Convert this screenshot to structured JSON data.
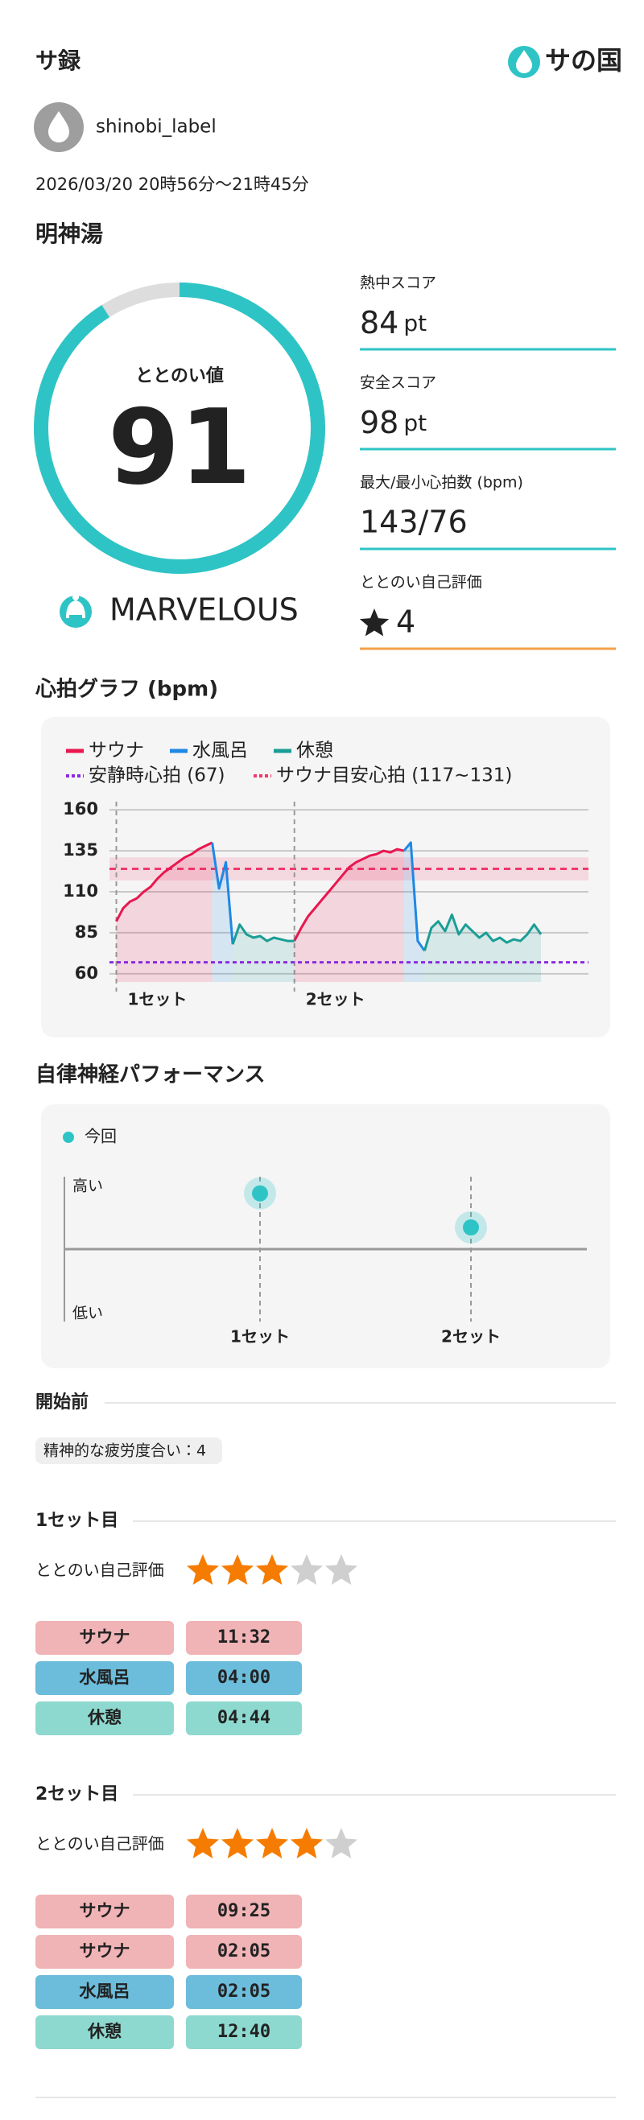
{
  "header": {
    "title": "サ録",
    "logo_text": "サの国"
  },
  "user": {
    "name": "shinobi_label"
  },
  "session": {
    "datetime": "2026/03/20 20時56分〜21時45分",
    "facility": "明神湯"
  },
  "totonoi": {
    "label": "ととのい値",
    "value": 91,
    "max": 100,
    "color": "#2ec4c6",
    "track_color": "#dddddd",
    "rank": "MARVELOUS"
  },
  "scores": [
    {
      "label": "熱中スコア",
      "value": 84,
      "unit": "pt",
      "color": "#2ec4c6"
    },
    {
      "label": "安全スコア",
      "value": 98,
      "unit": "pt",
      "color": "#2ec4c6"
    },
    {
      "label": "最大/最小心拍数 (bpm)",
      "value": "143/76",
      "color": "#2ec4c6"
    },
    {
      "label": "ととのい自己評価",
      "value": 4,
      "color": "#f5a04a"
    }
  ],
  "chart_data": [
    {
      "type": "line",
      "title": "心拍グラフ (bpm)",
      "categories": [
        null,
        "1セット",
        null,
        null,
        null,
        null,
        null,
        null,
        null,
        null,
        null,
        null,
        null,
        null,
        null,
        null,
        null,
        null,
        null,
        null,
        null,
        null,
        null,
        null,
        null,
        null,
        null,
        "2セット",
        null,
        null,
        null,
        null,
        null,
        null,
        null,
        null,
        null,
        null,
        null,
        null,
        null,
        null,
        null,
        null,
        null,
        null,
        null,
        null,
        null,
        null,
        null,
        null,
        null,
        null,
        null,
        null,
        null,
        null,
        null,
        null,
        null,
        null,
        null,
        null
      ],
      "series": [
        {
          "name": "サウナ",
          "color": "#e8174f",
          "values": [
            null,
            92,
            100,
            104,
            106,
            110,
            113,
            118,
            122,
            125,
            128,
            131,
            133,
            136,
            138,
            140,
            null,
            null,
            null,
            null,
            null,
            null,
            null,
            null,
            null,
            null,
            null,
            80,
            88,
            95,
            100,
            105,
            110,
            115,
            120,
            125,
            128,
            130,
            132,
            133,
            135,
            134,
            136,
            135,
            null,
            null,
            null,
            null,
            null,
            null,
            null,
            null,
            null,
            null,
            null,
            null,
            null,
            null,
            null,
            null,
            null,
            null,
            null,
            null
          ]
        },
        {
          "name": "水風呂",
          "color": "#1e88e5",
          "values": [
            null,
            null,
            null,
            null,
            null,
            null,
            null,
            null,
            null,
            null,
            null,
            null,
            null,
            null,
            null,
            140,
            112,
            128,
            78,
            null,
            null,
            null,
            null,
            null,
            null,
            null,
            null,
            null,
            null,
            null,
            null,
            null,
            null,
            null,
            null,
            null,
            null,
            null,
            null,
            null,
            null,
            null,
            null,
            135,
            140,
            80,
            74,
            null,
            null,
            null,
            null,
            null,
            null,
            null,
            null,
            null,
            null,
            null,
            null,
            null,
            null,
            null,
            null,
            null
          ]
        },
        {
          "name": "休憩",
          "color": "#1a9e96",
          "values": [
            null,
            null,
            null,
            null,
            null,
            null,
            null,
            null,
            null,
            null,
            null,
            null,
            null,
            null,
            null,
            null,
            null,
            null,
            78,
            90,
            84,
            82,
            83,
            80,
            82,
            81,
            80,
            80,
            null,
            null,
            null,
            null,
            null,
            null,
            null,
            null,
            null,
            null,
            null,
            null,
            null,
            null,
            null,
            null,
            null,
            null,
            74,
            88,
            92,
            86,
            96,
            84,
            90,
            86,
            82,
            85,
            80,
            82,
            79,
            81,
            80,
            84,
            90,
            84
          ]
        }
      ],
      "reference_lines": [
        {
          "name": "安静時心拍 (67)",
          "color": "#8a2be2",
          "value": 67
        }
      ],
      "reference_bands": [
        {
          "name": "サウナ目安心拍 (117~131)",
          "color": "#f0386b",
          "range": [
            117,
            131
          ]
        }
      ],
      "ylim": [
        55,
        165
      ],
      "yticks": [
        60,
        85,
        110,
        135,
        160
      ],
      "grid": true
    },
    {
      "type": "scatter",
      "title": "自律神経パフォーマンス",
      "categories": [
        "1セット",
        "2セット"
      ],
      "series": [
        {
          "name": "今回",
          "color": "#2ec4c6",
          "values": [
            0.77,
            0.3
          ]
        }
      ],
      "ylim": [
        -1,
        1
      ],
      "y_labels": {
        "high": "高い",
        "low": "低い"
      }
    }
  ],
  "before": {
    "title": "開始前",
    "tag": "精神的な疲労度合い：4"
  },
  "sets": [
    {
      "title": "1セット目",
      "rating_label": "ととのい自己評価",
      "rating": 3,
      "max_rating": 5,
      "rows": [
        {
          "label": "サウナ",
          "time": "11:32",
          "color": "#f0b3b6"
        },
        {
          "label": "水風呂",
          "time": "04:00",
          "color": "#6cbcdb"
        },
        {
          "label": "休憩",
          "time": "04:44",
          "color": "#8ed9cf"
        }
      ]
    },
    {
      "title": "2セット目",
      "rating_label": "ととのい自己評価",
      "rating": 4,
      "max_rating": 5,
      "rows": [
        {
          "label": "サウナ",
          "time": "09:25",
          "color": "#f0b3b6"
        },
        {
          "label": "サウナ",
          "time": "02:05",
          "color": "#f0b3b6"
        },
        {
          "label": "水風呂",
          "time": "02:05",
          "color": "#6cbcdb"
        },
        {
          "label": "休憩",
          "time": "12:40",
          "color": "#8ed9cf"
        }
      ]
    }
  ]
}
